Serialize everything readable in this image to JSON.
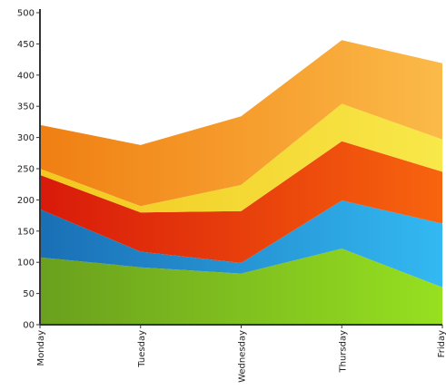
{
  "chart_data": {
    "type": "area",
    "stacked": true,
    "categories": [
      "Monday",
      "Tuesday",
      "Wednesday",
      "Thursday",
      "Friday"
    ],
    "series": [
      {
        "values": [
          108,
          92,
          82,
          122,
          60
        ],
        "color_start": "#6aa01e",
        "color_end": "#96e020"
      },
      {
        "values": [
          77,
          25,
          17,
          77,
          102
        ],
        "color_start": "#1a6fb5",
        "color_end": "#33b9f2"
      },
      {
        "values": [
          55,
          63,
          83,
          95,
          83
        ],
        "color_start": "#d81a0a",
        "color_end": "#f7640e"
      },
      {
        "values": [
          10,
          10,
          42,
          60,
          52
        ],
        "color_start": "#f1c81e",
        "color_end": "#f8e84a"
      },
      {
        "values": [
          70,
          98,
          110,
          102,
          122
        ],
        "color_start": "#f07f12",
        "color_end": "#fbba48"
      }
    ],
    "yticks": [
      0,
      50,
      100,
      150,
      200,
      250,
      300,
      350,
      400,
      450,
      500
    ],
    "ytick_labels": [
      "00",
      "50",
      "100",
      "150",
      "200",
      "250",
      "300",
      "350",
      "400",
      "450",
      "500"
    ],
    "ylim": [
      0,
      500
    ],
    "grid": false,
    "legend": "none"
  }
}
